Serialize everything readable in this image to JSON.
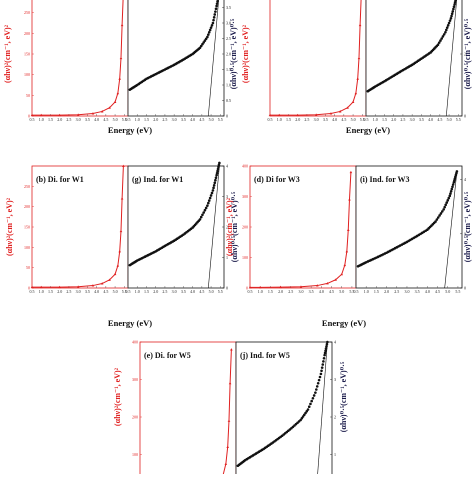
{
  "colors": {
    "direct": "#e02020",
    "indirect": "#111111",
    "grid_bg": "#ffffff"
  },
  "chart_data": [
    {
      "id": "top-left",
      "panels": [
        {
          "label": "",
          "type": "line",
          "color": "#e02020",
          "marker": "triangle",
          "ylabel": "(αhν)²(cm⁻¹, eV)²",
          "ylabel_side": "left",
          "ylabel_color": "#e02020",
          "xlim": [
            0.5,
            5.7
          ],
          "ylim": [
            0,
            300
          ],
          "xticks": [
            "0.5",
            "1.0",
            "1.5",
            "2.0",
            "2.5",
            "3.0",
            "3.5",
            "4.0",
            "4.5",
            "5.0",
            "5.5"
          ],
          "yticks": [
            "0",
            "50",
            "100",
            "150",
            "200",
            "250"
          ],
          "x": [
            0.5,
            1.0,
            2.0,
            3.0,
            3.8,
            4.3,
            4.7,
            5.0,
            5.15,
            5.25,
            5.32,
            5.38,
            5.45
          ],
          "y": [
            2,
            2,
            2,
            3,
            6,
            11,
            20,
            34,
            55,
            90,
            140,
            220,
            300
          ]
        },
        {
          "label": "",
          "type": "scatter",
          "color": "#111111",
          "marker": "circle",
          "ylabel": "(αhν)⁰·⁵(cm⁻¹, eV)⁰·⁵",
          "ylabel_side": "right",
          "ylabel_color": "#111111",
          "xlim": [
            0.5,
            5.7
          ],
          "ylim": [
            0,
            4
          ],
          "xticks": [
            "0.5",
            "1.0",
            "1.5",
            "2.0",
            "2.5",
            "3.0",
            "3.5",
            "4.0",
            "4.5",
            "5.0",
            "5.5"
          ],
          "yticks": [
            "0",
            "0.5",
            "1.0",
            "1.5",
            "2.0",
            "2.5",
            "3.0",
            "3.5"
          ],
          "x": [
            0.6,
            1.0,
            1.5,
            2.0,
            2.5,
            3.0,
            3.5,
            4.0,
            4.4,
            4.8,
            5.1,
            5.3,
            5.45
          ],
          "y": [
            0.85,
            1.0,
            1.2,
            1.35,
            1.5,
            1.65,
            1.82,
            2.0,
            2.2,
            2.55,
            3.0,
            3.55,
            4.0
          ],
          "fit_line": {
            "x": [
              4.85,
              5.45
            ],
            "y": [
              0,
              4
            ]
          }
        }
      ]
    },
    {
      "id": "top-right",
      "panels": [
        {
          "label": "",
          "type": "line",
          "color": "#e02020",
          "marker": "triangle",
          "ylabel": "(αhν)²(cm⁻¹, eV)²",
          "ylabel_side": "left",
          "ylabel_color": "#e02020",
          "xlim": [
            0.5,
            5.7
          ],
          "ylim": [
            0,
            300
          ],
          "xticks": [
            "0.5",
            "1.0",
            "1.5",
            "2.0",
            "2.5",
            "3.0",
            "3.5",
            "4.0",
            "4.5",
            "5.0",
            "5.5"
          ],
          "yticks": [],
          "x": [
            0.5,
            1.0,
            2.0,
            3.0,
            3.8,
            4.3,
            4.7,
            5.0,
            5.15,
            5.25,
            5.32,
            5.38,
            5.45
          ],
          "y": [
            2,
            2,
            2,
            3,
            6,
            11,
            20,
            34,
            55,
            90,
            140,
            220,
            300
          ]
        },
        {
          "label": "",
          "type": "scatter",
          "color": "#111111",
          "marker": "circle",
          "ylabel": "(αhν)⁰·⁵(cm⁻¹, eV)⁰·⁵",
          "ylabel_side": "right",
          "ylabel_color": "#111111",
          "xlim": [
            0.5,
            5.7
          ],
          "ylim": [
            0,
            4
          ],
          "xticks": [
            "0.5",
            "1.0",
            "1.5",
            "2.0",
            "2.5",
            "3.0",
            "3.5",
            "4.0",
            "4.5",
            "5.0",
            "5.5"
          ],
          "yticks": [
            "0",
            "2",
            "4"
          ],
          "x": [
            0.6,
            1.0,
            1.5,
            2.0,
            2.5,
            3.0,
            3.5,
            4.0,
            4.4,
            4.8,
            5.1,
            5.3,
            5.45
          ],
          "y": [
            0.8,
            0.95,
            1.12,
            1.3,
            1.48,
            1.65,
            1.85,
            2.05,
            2.3,
            2.7,
            3.15,
            3.6,
            4.0
          ],
          "fit_line": {
            "x": [
              4.85,
              5.45
            ],
            "y": [
              0,
              4
            ]
          }
        }
      ]
    },
    {
      "id": "mid-left",
      "panels": [
        {
          "label": "(b) Di. for W1",
          "type": "line",
          "color": "#e02020",
          "marker": "triangle",
          "ylabel": "(αhν)²(cm⁻¹, eV)²",
          "ylabel_side": "left",
          "ylabel_color": "#e02020",
          "xlim": [
            0.5,
            5.7
          ],
          "ylim": [
            0,
            300
          ],
          "xticks": [
            "0.5",
            "1.0",
            "1.5",
            "2.0",
            "2.5",
            "3.0",
            "3.5",
            "4.0",
            "4.5",
            "5.0",
            "5.5"
          ],
          "yticks": [
            "0",
            "50",
            "100",
            "150",
            "200",
            "250"
          ],
          "x": [
            0.5,
            1.0,
            2.0,
            3.0,
            3.8,
            4.3,
            4.7,
            5.0,
            5.15,
            5.25,
            5.32,
            5.38,
            5.45
          ],
          "y": [
            2,
            2,
            2,
            3,
            6,
            11,
            20,
            34,
            55,
            90,
            140,
            220,
            300
          ]
        },
        {
          "label": "(g) Ind. for W1",
          "type": "scatter",
          "color": "#111111",
          "marker": "circle",
          "ylabel": "(αhν)⁰·⁵(cm⁻¹, eV)⁰·⁵",
          "ylabel_side": "right",
          "ylabel_color": "#111111",
          "xlim": [
            0.5,
            5.7
          ],
          "ylim": [
            0,
            4
          ],
          "xticks": [
            "0.5",
            "1.0",
            "1.5",
            "2.0",
            "2.5",
            "3.0",
            "3.5",
            "4.0",
            "4.5",
            "5.0",
            "5.5"
          ],
          "yticks": [
            "0",
            "1",
            "2",
            "3",
            "4"
          ],
          "x": [
            0.6,
            1.0,
            1.5,
            2.0,
            2.5,
            3.0,
            3.5,
            4.0,
            4.4,
            4.8,
            5.1,
            5.3,
            5.45
          ],
          "y": [
            0.75,
            0.9,
            1.05,
            1.2,
            1.38,
            1.55,
            1.75,
            1.98,
            2.25,
            2.7,
            3.2,
            3.7,
            4.1
          ],
          "fit_line": {
            "x": [
              4.85,
              5.45
            ],
            "y": [
              0,
              4
            ]
          }
        }
      ]
    },
    {
      "id": "mid-right",
      "panels": [
        {
          "label": "(d) Di for W3",
          "type": "line",
          "color": "#e02020",
          "marker": "triangle",
          "ylabel": "(αhν)²(cm⁻¹, eV)²",
          "ylabel_side": "left",
          "ylabel_color": "#e02020",
          "xlim": [
            0.5,
            5.7
          ],
          "ylim": [
            0,
            400
          ],
          "xticks": [
            "0.5",
            "1.0",
            "1.5",
            "2.0",
            "2.5",
            "3.0",
            "3.5",
            "4.0",
            "4.5",
            "5.0",
            "5.5"
          ],
          "yticks": [
            "0",
            "100",
            "200",
            "300",
            "400"
          ],
          "x": [
            0.5,
            1.0,
            2.0,
            3.0,
            3.8,
            4.3,
            4.7,
            5.0,
            5.15,
            5.25,
            5.32,
            5.38,
            5.45
          ],
          "y": [
            2,
            2,
            3,
            4,
            8,
            15,
            27,
            45,
            75,
            120,
            190,
            290,
            380
          ]
        },
        {
          "label": "(i) Ind. for W3",
          "type": "scatter",
          "color": "#111111",
          "marker": "circle",
          "ylabel": "(αhν)⁰·⁵(cm⁻¹, eV)⁰·⁵",
          "ylabel_side": "right",
          "ylabel_color": "#111111",
          "xlim": [
            0.5,
            5.7
          ],
          "ylim": [
            0,
            4.5
          ],
          "xticks": [
            "0.5",
            "1.0",
            "1.5",
            "2.0",
            "2.5",
            "3.0",
            "3.5",
            "4.0",
            "4.5",
            "5.0",
            "5.5"
          ],
          "yticks": [
            "0",
            "2",
            "4"
          ],
          "x": [
            0.6,
            1.0,
            1.5,
            2.0,
            2.5,
            3.0,
            3.5,
            4.0,
            4.4,
            4.8,
            5.1,
            5.3,
            5.45
          ],
          "y": [
            0.8,
            0.95,
            1.12,
            1.3,
            1.5,
            1.7,
            1.92,
            2.15,
            2.45,
            2.9,
            3.4,
            3.9,
            4.3
          ],
          "fit_line": {
            "x": [
              4.85,
              5.45
            ],
            "y": [
              0,
              4.3
            ]
          }
        }
      ]
    },
    {
      "id": "bottom",
      "panels": [
        {
          "label": "(e) Di. for W5",
          "type": "line",
          "color": "#e02020",
          "marker": "triangle",
          "ylabel": "(αhν)²(cm⁻¹, eV)²",
          "ylabel_side": "left",
          "ylabel_color": "#e02020",
          "xlim": [
            0.5,
            5.7
          ],
          "ylim": [
            0,
            400
          ],
          "xticks": [],
          "yticks": [
            "0",
            "100",
            "200",
            "300",
            "400"
          ],
          "x": [
            0.5,
            1.0,
            2.0,
            3.0,
            3.8,
            4.3,
            4.7,
            5.0,
            5.15,
            5.25,
            5.32,
            5.38,
            5.45
          ],
          "y": [
            2,
            2,
            3,
            4,
            8,
            15,
            27,
            45,
            75,
            120,
            190,
            290,
            380
          ]
        },
        {
          "label": "(j) Ind. for W5",
          "type": "scatter",
          "color": "#111111",
          "marker": "circle",
          "ylabel": "(αhν)⁰·⁵(cm⁻¹, eV)⁰·⁵",
          "ylabel_side": "right",
          "ylabel_color": "#111111",
          "xlim": [
            0.5,
            5.7
          ],
          "ylim": [
            0,
            4
          ],
          "xticks": [],
          "yticks": [
            "0",
            "1",
            "2",
            "3",
            "4"
          ],
          "x": [
            0.6,
            1.0,
            1.5,
            2.0,
            2.5,
            3.0,
            3.5,
            4.0,
            4.4,
            4.8,
            5.1,
            5.3,
            5.45
          ],
          "y": [
            0.7,
            0.85,
            1.0,
            1.15,
            1.32,
            1.5,
            1.7,
            1.92,
            2.2,
            2.65,
            3.15,
            3.65,
            4.0
          ],
          "fit_line": {
            "x": [
              4.85,
              5.45
            ],
            "y": [
              0,
              4
            ]
          }
        }
      ]
    }
  ],
  "xlabel": "Energy (eV)"
}
